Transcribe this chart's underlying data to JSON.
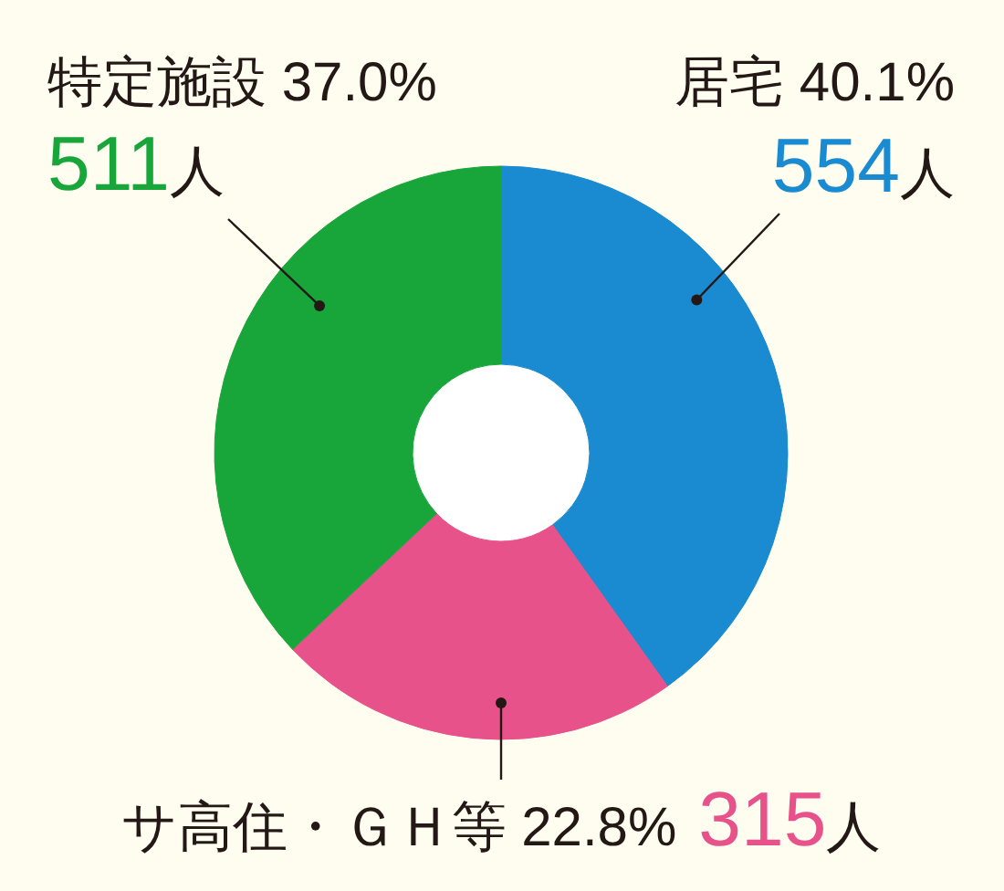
{
  "chart_data": {
    "type": "donut",
    "categories": [
      "居宅 40.1%",
      "サ高住・ＧＨ等 22.8%",
      "特定施設 37.0%"
    ],
    "values": [
      554,
      315,
      511
    ],
    "colors": [
      "#1a8bd0",
      "#e8528b",
      "#18a63b"
    ],
    "value_labels": [
      "554人",
      "315人",
      "511人"
    ]
  }
}
